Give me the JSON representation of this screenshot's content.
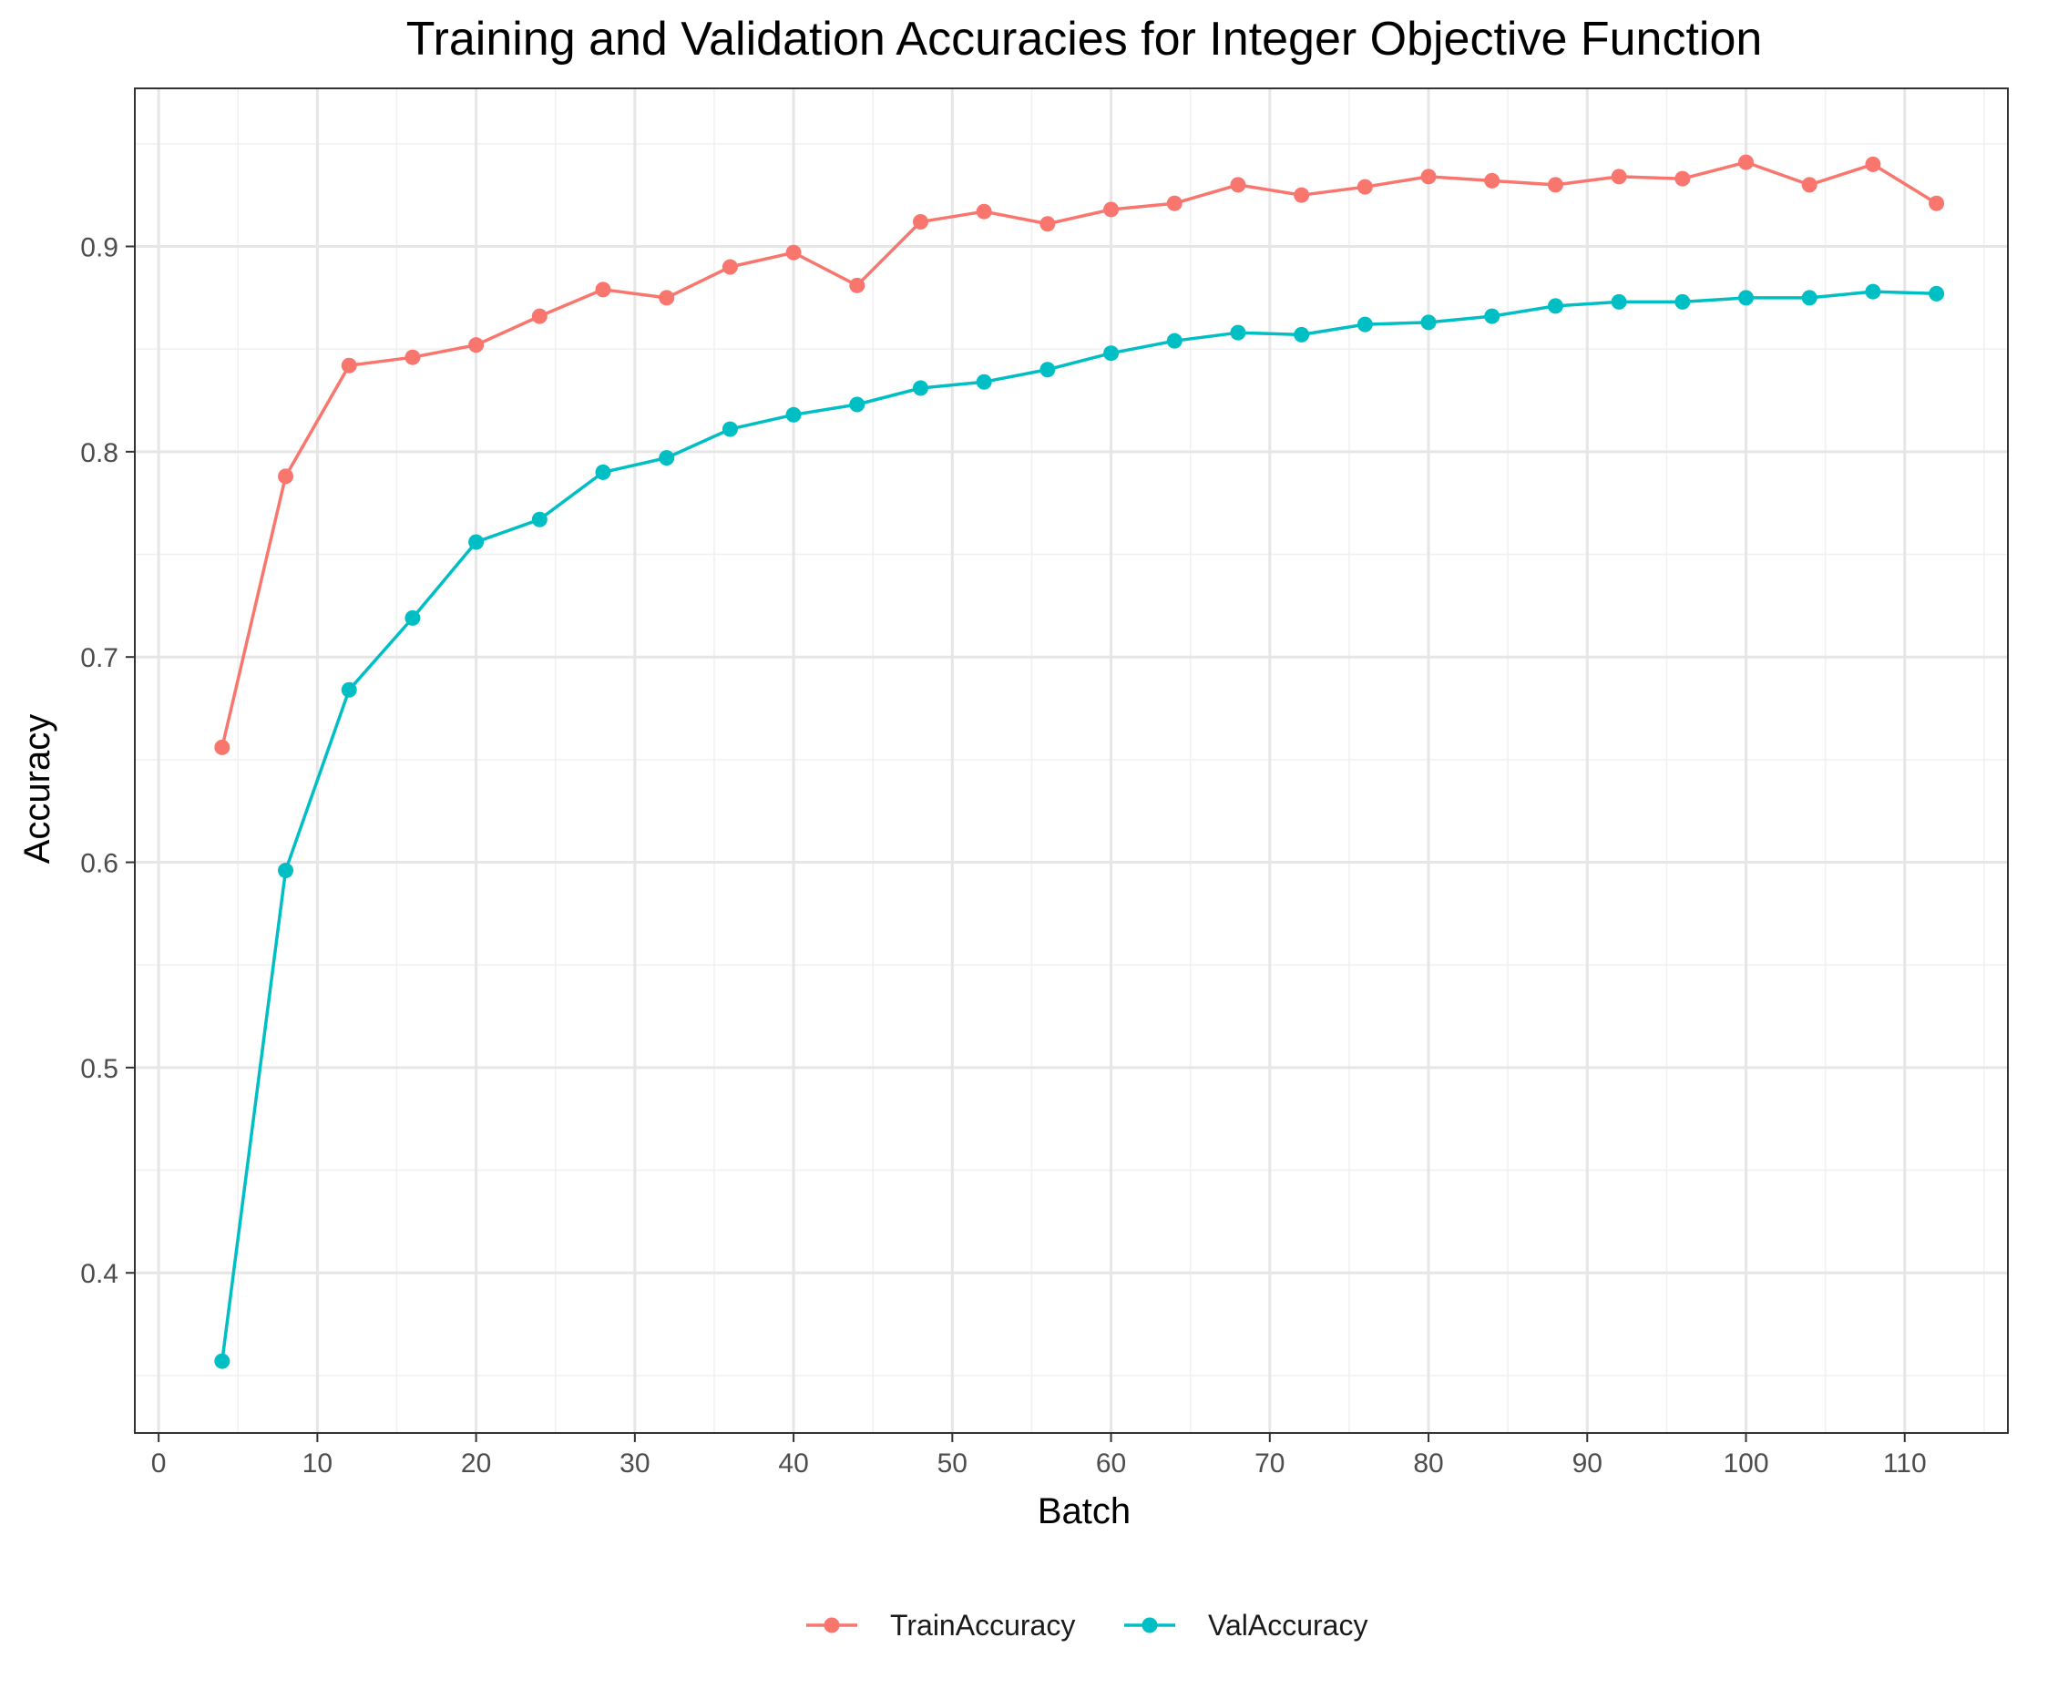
{
  "chart_data": {
    "type": "line",
    "title": "Training and Validation Accuracies for Integer Objective Function",
    "xlabel": "Batch",
    "ylabel": "Accuracy",
    "xlim": [
      -1.5,
      116.5
    ],
    "ylim": [
      0.322,
      0.977
    ],
    "x_ticks": [
      0,
      10,
      20,
      30,
      40,
      50,
      60,
      70,
      80,
      90,
      100,
      110
    ],
    "y_ticks": [
      0.4,
      0.5,
      0.6,
      0.7,
      0.8,
      0.9
    ],
    "x_tick_labels": [
      "0",
      "10",
      "20",
      "30",
      "40",
      "50",
      "60",
      "70",
      "80",
      "90",
      "100",
      "110"
    ],
    "y_tick_labels": [
      "0.4",
      "0.5",
      "0.6",
      "0.7",
      "0.8",
      "0.9"
    ],
    "grid": true,
    "legend_position": "bottom",
    "x": [
      4,
      8,
      12,
      16,
      20,
      24,
      28,
      32,
      36,
      40,
      44,
      48,
      52,
      56,
      60,
      64,
      68,
      72,
      76,
      80,
      84,
      88,
      92,
      96,
      100,
      104,
      108,
      112
    ],
    "series": [
      {
        "name": "TrainAccuracy",
        "color": "#F8766D",
        "values": [
          0.656,
          0.788,
          0.842,
          0.846,
          0.852,
          0.866,
          0.879,
          0.875,
          0.89,
          0.897,
          0.881,
          0.912,
          0.917,
          0.911,
          0.918,
          0.921,
          0.93,
          0.925,
          0.929,
          0.934,
          0.932,
          0.93,
          0.934,
          0.933,
          0.941,
          0.93,
          0.94,
          0.921
        ]
      },
      {
        "name": "ValAccuracy",
        "color": "#00BFC4",
        "values": [
          0.357,
          0.596,
          0.684,
          0.719,
          0.756,
          0.767,
          0.79,
          0.797,
          0.811,
          0.818,
          0.823,
          0.831,
          0.834,
          0.84,
          0.848,
          0.854,
          0.858,
          0.857,
          0.862,
          0.863,
          0.866,
          0.871,
          0.873,
          0.873,
          0.875,
          0.875,
          0.878,
          0.877
        ]
      }
    ]
  }
}
